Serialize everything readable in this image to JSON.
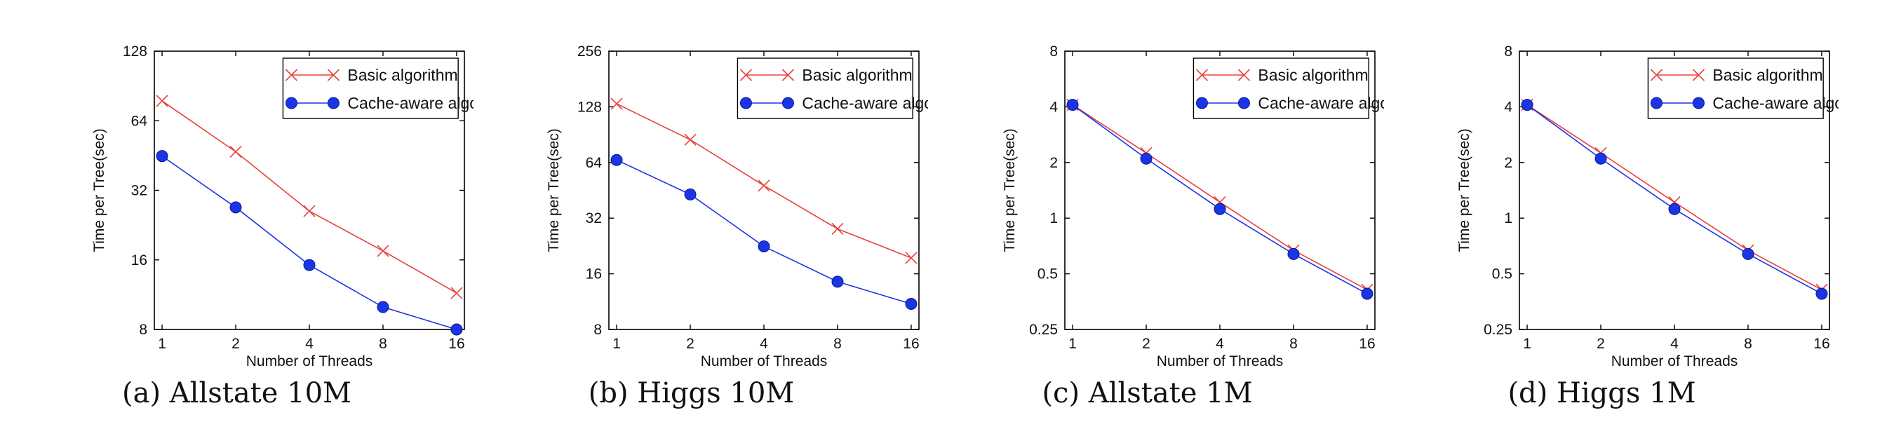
{
  "figure": {
    "panels": [
      {
        "caption": "(a) Allstate 10M"
      },
      {
        "caption": "(b) Higgs 10M"
      },
      {
        "caption": "(c) Allstate 1M"
      },
      {
        "caption": "(d) Higgs 1M"
      }
    ]
  },
  "colors": {
    "basic": "#e8413c",
    "cache": "#1a35e6",
    "axis": "#000000",
    "text": "#111111"
  },
  "markers": {
    "basic": "x-cross",
    "cache": "filled-circle"
  },
  "chart_data": [
    {
      "type": "line",
      "xlabel": "Number of Threads",
      "ylabel": "Time per Tree(sec)",
      "x": [
        1,
        2,
        4,
        8,
        16
      ],
      "x_ticks": [
        "1",
        "2",
        "4",
        "8",
        "16"
      ],
      "y_scale": "log2",
      "ylim": [
        8,
        128
      ],
      "y_ticks": [
        "8",
        "16",
        "32",
        "64",
        "128"
      ],
      "legend_position": "top-right",
      "grid": false,
      "series": [
        {
          "name": "Basic algorithm",
          "values": [
            78,
            47,
            26,
            17.5,
            11.5
          ]
        },
        {
          "name": "Cache-aware algorithm",
          "values": [
            45,
            27,
            15.2,
            10,
            8
          ]
        }
      ]
    },
    {
      "type": "line",
      "xlabel": "Number of Threads",
      "ylabel": "Time per Tree(sec)",
      "x": [
        1,
        2,
        4,
        8,
        16
      ],
      "x_ticks": [
        "1",
        "2",
        "4",
        "8",
        "16"
      ],
      "y_scale": "log2",
      "ylim": [
        8,
        256
      ],
      "y_ticks": [
        "8",
        "16",
        "32",
        "64",
        "128",
        "256"
      ],
      "legend_position": "top-right",
      "grid": false,
      "series": [
        {
          "name": "Basic algorithm",
          "values": [
            133,
            85,
            48,
            28,
            19.5
          ]
        },
        {
          "name": "Cache-aware algorithm",
          "values": [
            66,
            43,
            22.5,
            14.5,
            11
          ]
        }
      ]
    },
    {
      "type": "line",
      "xlabel": "Number of Threads",
      "ylabel": "Time per Tree(sec)",
      "x": [
        1,
        2,
        4,
        8,
        16
      ],
      "x_ticks": [
        "1",
        "2",
        "4",
        "8",
        "16"
      ],
      "y_scale": "log2",
      "ylim": [
        0.25,
        8
      ],
      "y_ticks": [
        "0.25",
        "0.5",
        "1",
        "2",
        "4",
        "8"
      ],
      "legend_position": "top-right",
      "grid": false,
      "series": [
        {
          "name": "Basic algorithm",
          "values": [
            4.1,
            2.25,
            1.22,
            0.67,
            0.41
          ]
        },
        {
          "name": "Cache-aware algorithm",
          "values": [
            4.1,
            2.1,
            1.12,
            0.64,
            0.39
          ]
        }
      ]
    },
    {
      "type": "line",
      "xlabel": "Number of Threads",
      "ylabel": "Time per Tree(sec)",
      "x": [
        1,
        2,
        4,
        8,
        16
      ],
      "x_ticks": [
        "1",
        "2",
        "4",
        "8",
        "16"
      ],
      "y_scale": "log2",
      "ylim": [
        0.25,
        8
      ],
      "y_ticks": [
        "0.25",
        "0.5",
        "1",
        "2",
        "4",
        "8"
      ],
      "legend_position": "top-right",
      "grid": false,
      "series": [
        {
          "name": "Basic algorithm",
          "values": [
            4.1,
            2.25,
            1.22,
            0.67,
            0.41
          ]
        },
        {
          "name": "Cache-aware algorithm",
          "values": [
            4.1,
            2.1,
            1.12,
            0.64,
            0.39
          ]
        }
      ]
    }
  ]
}
